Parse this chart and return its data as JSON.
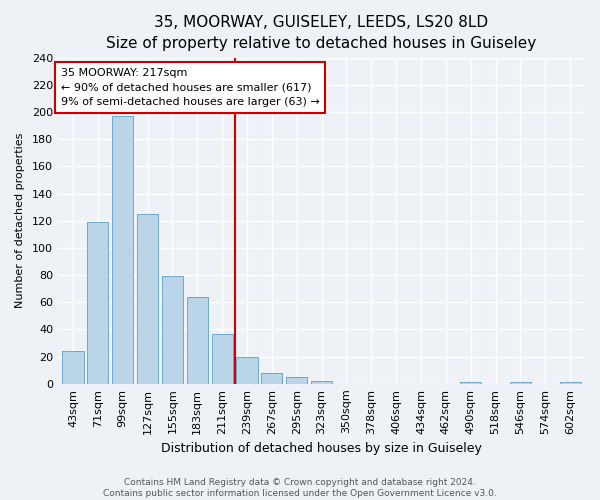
{
  "title": "35, MOORWAY, GUISELEY, LEEDS, LS20 8LD",
  "subtitle": "Size of property relative to detached houses in Guiseley",
  "xlabel": "Distribution of detached houses by size in Guiseley",
  "ylabel": "Number of detached properties",
  "bar_labels": [
    "43sqm",
    "71sqm",
    "99sqm",
    "127sqm",
    "155sqm",
    "183sqm",
    "211sqm",
    "239sqm",
    "267sqm",
    "295sqm",
    "323sqm",
    "350sqm",
    "378sqm",
    "406sqm",
    "434sqm",
    "462sqm",
    "490sqm",
    "518sqm",
    "546sqm",
    "574sqm",
    "602sqm"
  ],
  "bar_values": [
    24,
    119,
    197,
    125,
    79,
    64,
    37,
    20,
    8,
    5,
    2,
    0,
    0,
    0,
    0,
    0,
    1,
    0,
    1,
    0,
    1
  ],
  "bar_color": "#bad4e8",
  "bar_edge_color": "#6aaad4",
  "vline_color": "#cc0000",
  "annotation_title": "35 MOORWAY: 217sqm",
  "annotation_line1": "← 90% of detached houses are smaller (617)",
  "annotation_line2": "9% of semi-detached houses are larger (63) →",
  "annotation_box_color": "#ffffff",
  "annotation_box_edge": "#cc0000",
  "ylim": [
    0,
    240
  ],
  "yticks": [
    0,
    20,
    40,
    60,
    80,
    100,
    120,
    140,
    160,
    180,
    200,
    220,
    240
  ],
  "footer_line1": "Contains HM Land Registry data © Crown copyright and database right 2024.",
  "footer_line2": "Contains public sector information licensed under the Open Government Licence v3.0.",
  "bg_color": "#eef2f7",
  "grid_color": "#ffffff",
  "title_fontsize": 11,
  "subtitle_fontsize": 10,
  "xlabel_fontsize": 9,
  "ylabel_fontsize": 8,
  "tick_fontsize": 8,
  "annot_fontsize": 8,
  "footer_fontsize": 6.5
}
